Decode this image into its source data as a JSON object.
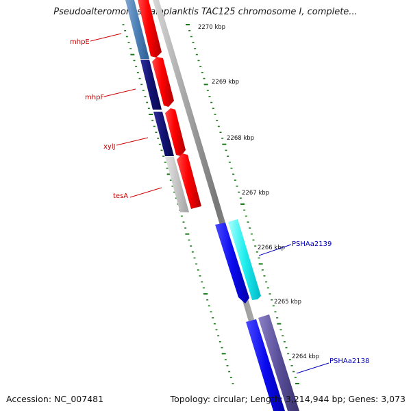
{
  "title": "Pseudoalteromonas haloplanktis TAC125 chromosome I, complete...",
  "ticks": [
    "2270 kbp",
    "2269 kbp",
    "2268 kbp",
    "2267 kbp",
    "2266 kbp",
    "2265 kbp",
    "2264 kbp"
  ],
  "genes": [
    {
      "name": "mhpE",
      "color": "#cc0000"
    },
    {
      "name": "mhpF",
      "color": "#cc0000"
    },
    {
      "name": "xylJ",
      "color": "#cc0000"
    },
    {
      "name": "tesA",
      "color": "#cc0000"
    },
    {
      "name": "PSHAa2139",
      "color": "#0000bb"
    },
    {
      "name": "PSHAa2138",
      "color": "#0000bb"
    }
  ],
  "footer": {
    "accession": "Accession: NC_007481",
    "summary": "Topology: circular; Length: 3,214,944 bp; Genes: 3,073"
  }
}
